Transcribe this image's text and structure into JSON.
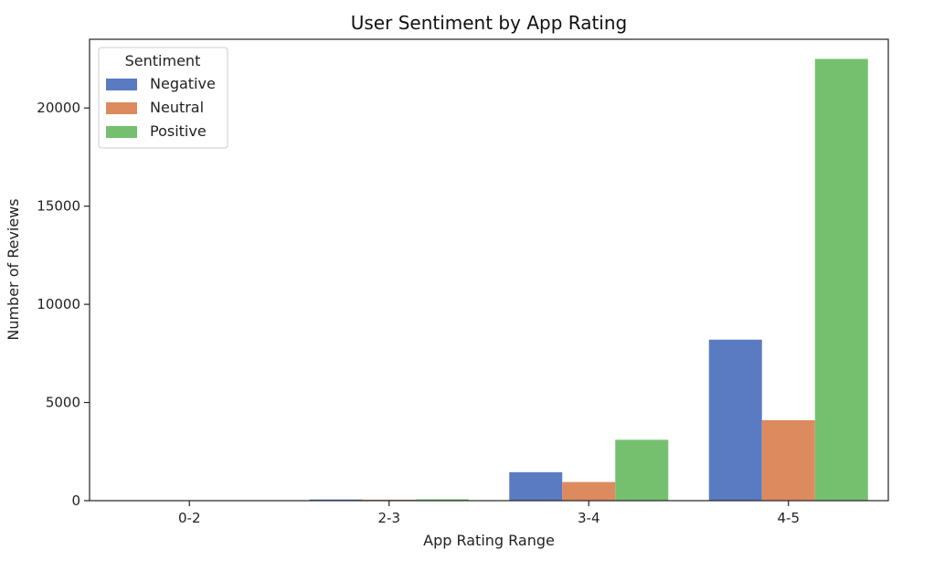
{
  "chart_data": {
    "type": "bar",
    "title": "User Sentiment by App Rating",
    "xlabel": "App Rating Range",
    "ylabel": "Number of Reviews",
    "categories": [
      "0-2",
      "2-3",
      "3-4",
      "4-5"
    ],
    "ylim": [
      0,
      23500
    ],
    "yticks": [
      0,
      5000,
      10000,
      15000,
      20000
    ],
    "grid": false,
    "legend": {
      "title": "Sentiment",
      "placement": "top-left"
    },
    "series": [
      {
        "name": "Negative",
        "color": "#5a7bc2",
        "values": [
          5,
          60,
          1450,
          8200
        ]
      },
      {
        "name": "Neutral",
        "color": "#dd8a5e",
        "values": [
          3,
          50,
          950,
          4100
        ]
      },
      {
        "name": "Positive",
        "color": "#75c06e",
        "values": [
          7,
          70,
          3100,
          22500
        ]
      }
    ]
  }
}
